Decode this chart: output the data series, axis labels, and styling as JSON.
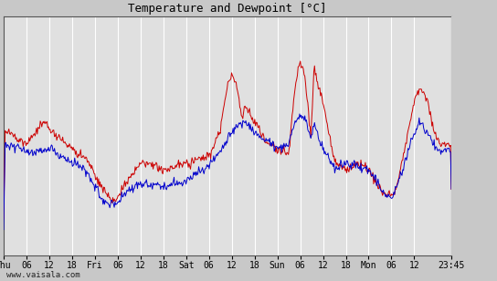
{
  "title": "Temperature and Dewpoint [°C]",
  "ylim": [
    4,
    22
  ],
  "yticks": [
    4,
    6,
    8,
    10,
    12,
    14,
    16,
    18,
    20,
    22
  ],
  "xlabel_ticks": [
    "Thu",
    "06",
    "12",
    "18",
    "Fri",
    "06",
    "12",
    "18",
    "Sat",
    "06",
    "12",
    "18",
    "Sun",
    "06",
    "12",
    "18",
    "Mon",
    "06",
    "12",
    "23:45"
  ],
  "tick_positions": [
    0,
    6,
    12,
    18,
    24,
    30,
    36,
    42,
    48,
    54,
    60,
    66,
    72,
    78,
    84,
    90,
    96,
    102,
    108,
    117.75
  ],
  "xlim_max": 117.75,
  "temp_color": "#cc0000",
  "dew_color": "#0000cc",
  "background_color": "#c8c8c8",
  "plot_bg_color": "#e0e0e0",
  "grid_color": "#ffffff",
  "watermark": "www.vaisala.com",
  "n_points": 600
}
